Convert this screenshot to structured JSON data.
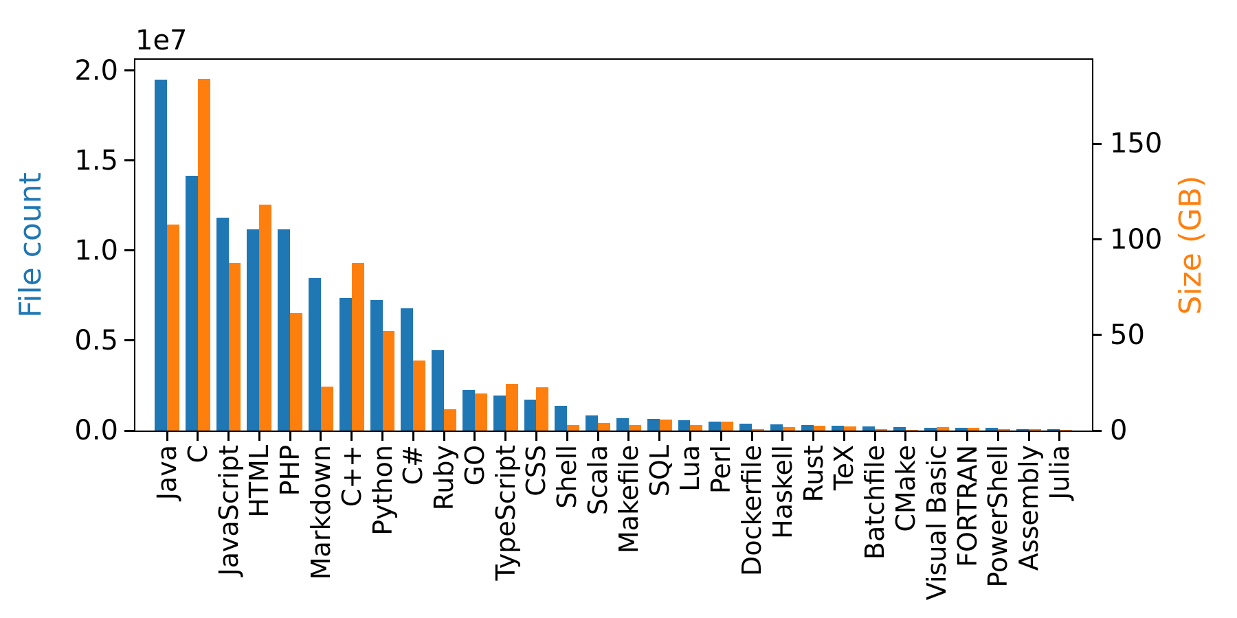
{
  "figure": {
    "offset_text": "1e7",
    "left_axis": {
      "label": "File count",
      "color": "#1f77b4",
      "max": 20600000,
      "ticks": [
        {
          "label": "0.0",
          "value": 0
        },
        {
          "label": "0.5",
          "value": 5000000
        },
        {
          "label": "1.0",
          "value": 10000000
        },
        {
          "label": "1.5",
          "value": 15000000
        },
        {
          "label": "2.0",
          "value": 20000000
        }
      ]
    },
    "right_axis": {
      "label": "Size (GB)",
      "color": "#ff7f0e",
      "max": 194,
      "ticks": [
        {
          "label": "0",
          "value": 0
        },
        {
          "label": "50",
          "value": 50
        },
        {
          "label": "100",
          "value": 100
        },
        {
          "label": "150",
          "value": 150
        }
      ]
    }
  },
  "chart_data": {
    "type": "bar",
    "title": "",
    "xlabel": "",
    "ylabel_left": "File count",
    "ylabel_right": "Size (GB)",
    "ylim_left": [
      0,
      20600000
    ],
    "ylim_right": [
      0,
      194
    ],
    "grid": false,
    "legend": "none",
    "categories": [
      "Java",
      "C",
      "JavaScript",
      "HTML",
      "PHP",
      "Markdown",
      "C++",
      "Python",
      "C#",
      "Ruby",
      "GO",
      "TypeScript",
      "CSS",
      "Shell",
      "Scala",
      "Makefile",
      "SQL",
      "Lua",
      "Perl",
      "Dockerfile",
      "Haskell",
      "Rust",
      "TeX",
      "Batchfile",
      "CMake",
      "Visual Basic",
      "FORTRAN",
      "PowerShell",
      "Assembly",
      "Julia"
    ],
    "series": [
      {
        "name": "File count",
        "axis": "left",
        "color": "#1f77b4",
        "values": [
          19500000,
          14150000,
          11840000,
          11180000,
          11180000,
          8460000,
          7380000,
          7230000,
          6810000,
          4470000,
          2270000,
          1940000,
          1730000,
          1390000,
          840000,
          680000,
          660000,
          580000,
          500000,
          370000,
          340000,
          320000,
          250000,
          240000,
          180000,
          160000,
          140000,
          140000,
          80000,
          60000
        ]
      },
      {
        "name": "Size (GB)",
        "axis": "right",
        "color": "#ff7f0e",
        "values": [
          107.7,
          183.8,
          87.8,
          118.1,
          61.4,
          23.1,
          87.7,
          52.0,
          36.8,
          11.0,
          19.3,
          24.6,
          22.7,
          3.0,
          3.9,
          2.9,
          5.7,
          2.8,
          4.7,
          0.7,
          1.9,
          2.7,
          2.2,
          0.7,
          0.5,
          1.9,
          1.6,
          0.7,
          0.8,
          0.3
        ]
      }
    ]
  }
}
